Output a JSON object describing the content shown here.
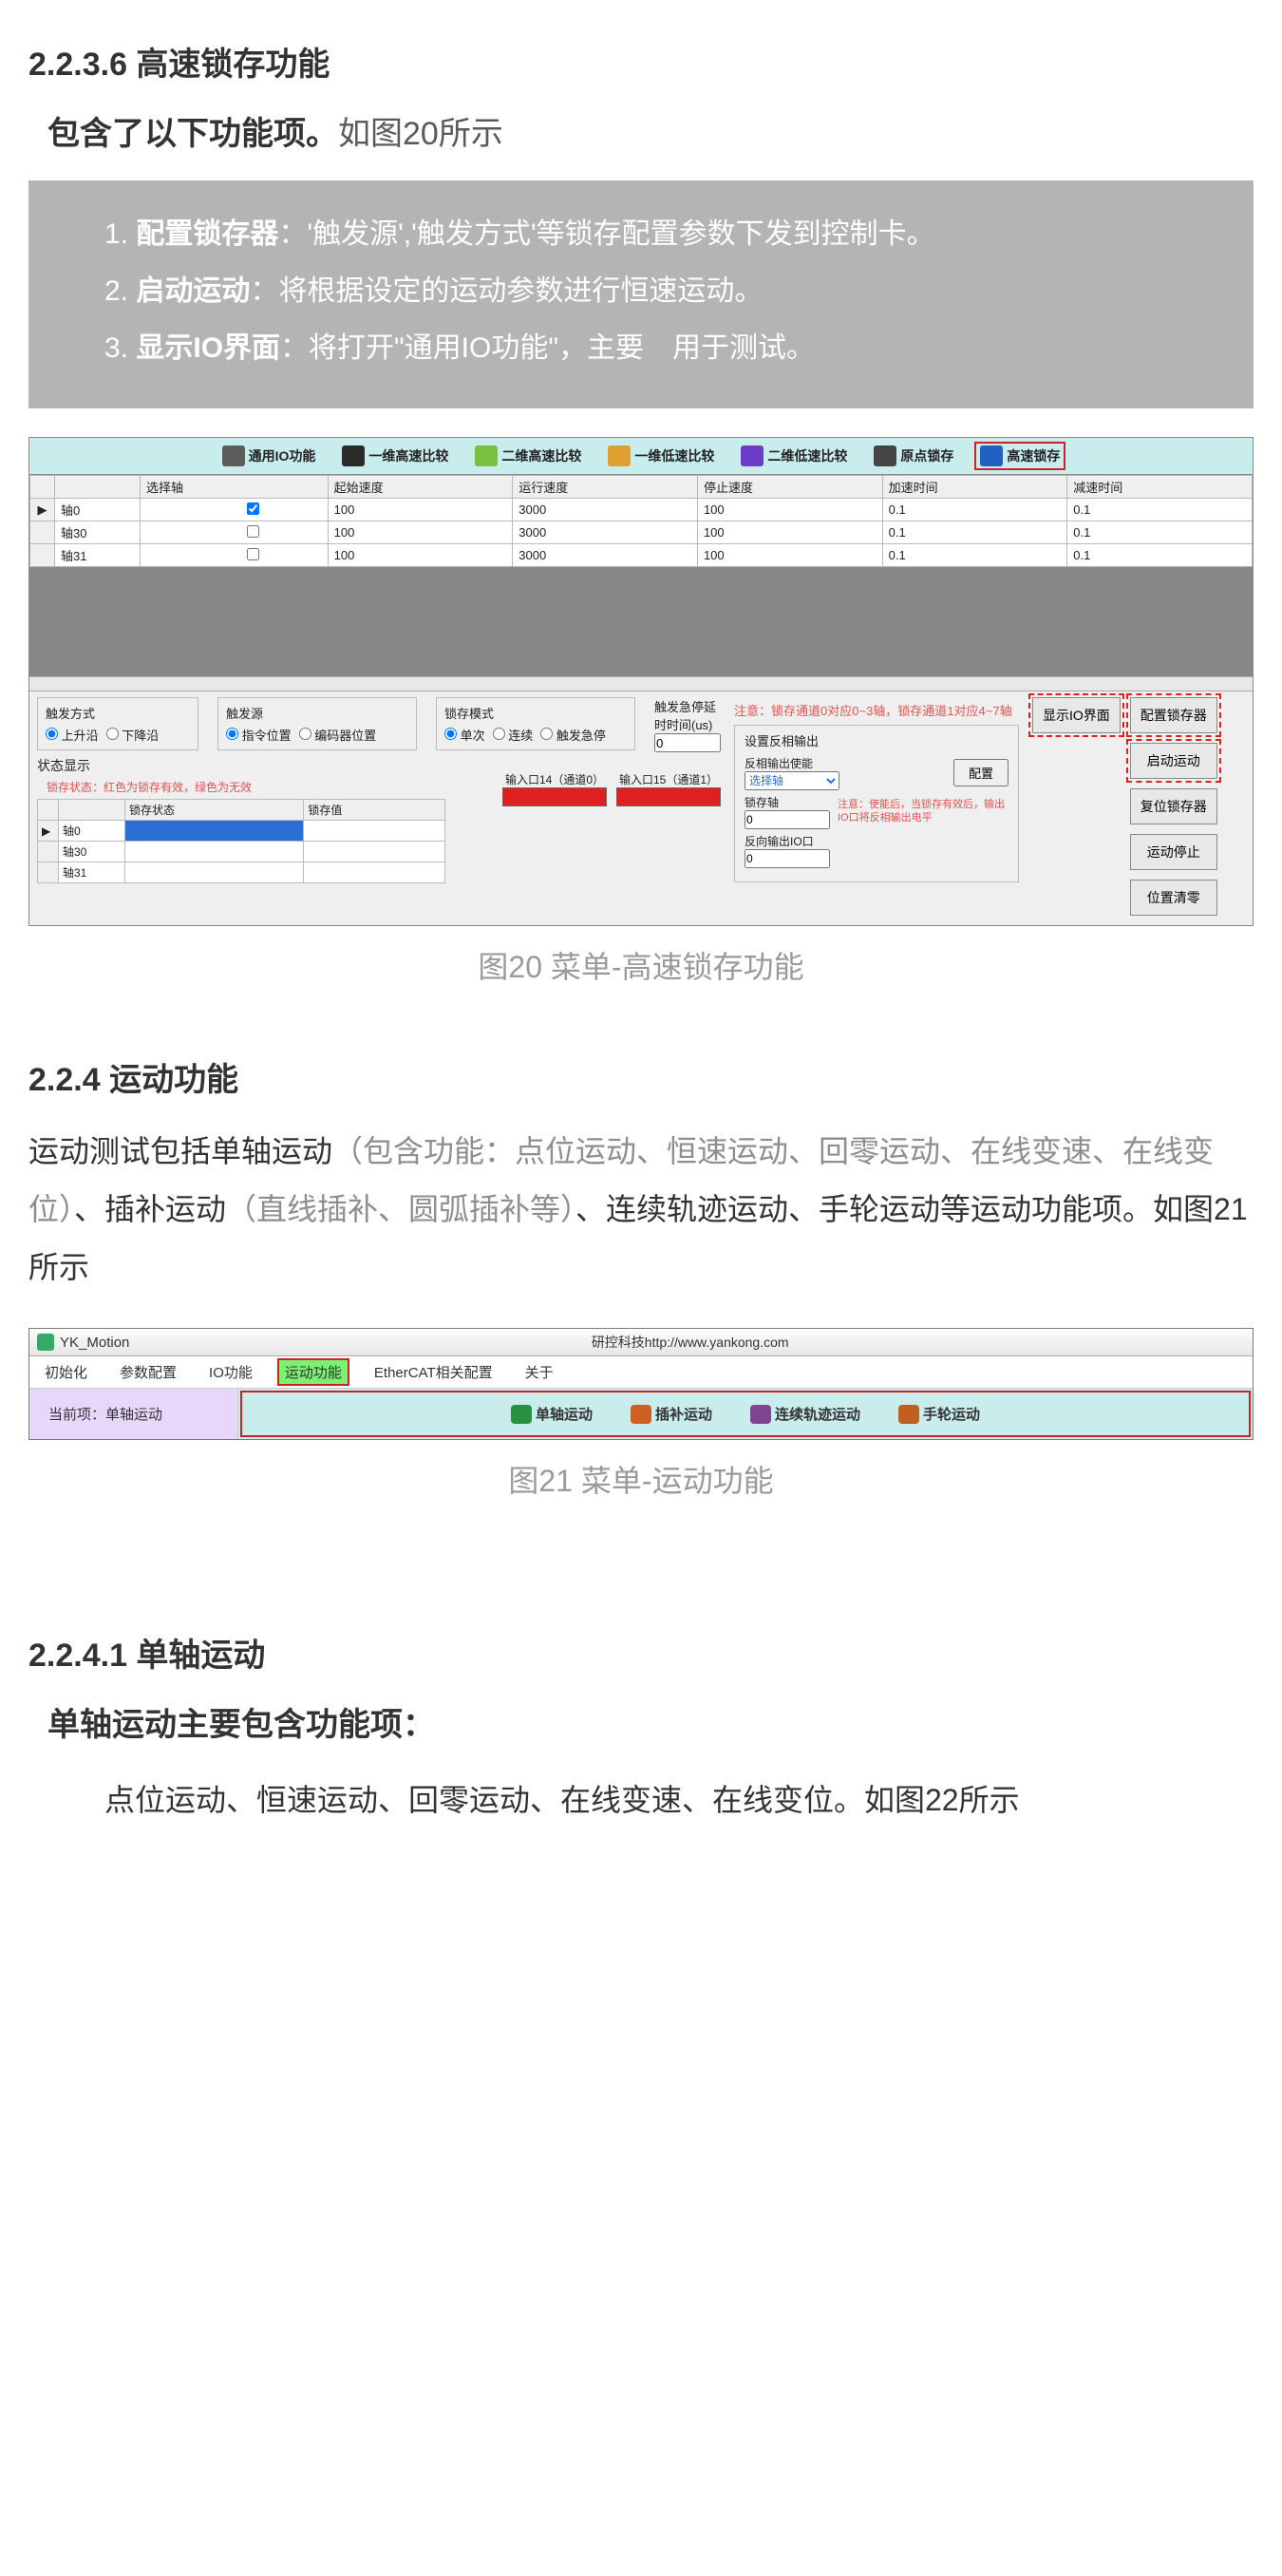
{
  "doc": {
    "sec_2236": "2.2.3.6 高速锁存功能",
    "sub_intro_bold": "包含了以下功能项。",
    "sub_intro_reg": "如图20所示",
    "box_items": [
      {
        "n": "1.",
        "b": "配置锁存器",
        "t": "：'触发源','触发方式'等锁存配置参数下发到控制卡。"
      },
      {
        "n": "2.",
        "b": "启动运动",
        "t": "：将根据设定的运动参数进行恒速运动。"
      },
      {
        "n": "3.",
        "b": "显示IO界面",
        "t": "：将打开\"通用IO功能\"，主要　用于测试。"
      }
    ],
    "fig20_caption": "图20 菜单-高速锁存功能",
    "sec_224": "2.2.4 运动功能",
    "para_224_pre": "运动测试包括单轴运动",
    "para_224_gry1": "（包含功能：点位运动、恒速运动、回零运动、在线变速、在线变位）",
    "para_224_mid1": "、插补运动",
    "para_224_gry2": "（直线插补、圆弧插补等）",
    "para_224_end": "、连续轨迹运动、手轮运动等运动功能项。如图21所示",
    "fig21_caption": "图21 菜单-运动功能",
    "sec_2241": "2.2.4.1 单轴运动",
    "sub_2241": "单轴运动主要包含功能项：",
    "list_2241": "点位运动、恒速运动、回零运动、在线变速、在线变位。如图22所示"
  },
  "fig20": {
    "tabs": [
      {
        "label": "通用IO功能",
        "color": "#5c5c5c"
      },
      {
        "label": "一维高速比较",
        "color": "#2a2a2a"
      },
      {
        "label": "二维高速比较",
        "color": "#78c040"
      },
      {
        "label": "一维低速比较",
        "color": "#e0a030"
      },
      {
        "label": "二维低速比较",
        "color": "#6a3cc8"
      },
      {
        "label": "原点锁存",
        "color": "#444"
      },
      {
        "label": "高速锁存",
        "color": "#2060c0",
        "active": true
      }
    ],
    "cols": [
      "",
      "",
      "选择轴",
      "起始速度",
      "运行速度",
      "停止速度",
      "加速时间",
      "减速时间"
    ],
    "rows": [
      {
        "hdr": "▶",
        "ax": "轴0",
        "sel": true,
        "v": [
          "100",
          "3000",
          "100",
          "0.1",
          "0.1"
        ]
      },
      {
        "hdr": "",
        "ax": "轴30",
        "sel": false,
        "v": [
          "100",
          "3000",
          "100",
          "0.1",
          "0.1"
        ]
      },
      {
        "hdr": "",
        "ax": "轴31",
        "sel": false,
        "v": [
          "100",
          "3000",
          "100",
          "0.1",
          "0.1"
        ]
      }
    ],
    "trig_mode_label": "触发方式",
    "trig_mode_opts": [
      "上升沿",
      "下降沿"
    ],
    "trig_src_label": "触发源",
    "trig_src_opts": [
      "指令位置",
      "编码器位置"
    ],
    "latch_mode_label": "锁存模式",
    "latch_mode_opts": [
      "单次",
      "连续",
      "触发急停"
    ],
    "delay_label": "触发急停延时时间(us)",
    "delay_value": "0",
    "right_note": "注意：锁存通道0对应0~3轴，锁存通道1对应4~7轴",
    "status_label": "状态显示",
    "status_note": "锁存状态：红色为锁存有效，绿色为无效",
    "port0": "输入口14（通道0）",
    "port1": "输入口15（通道1）",
    "status_cols": [
      "",
      "",
      "锁存状态",
      "锁存值"
    ],
    "status_rows": [
      "轴0",
      "轴30",
      "轴31"
    ],
    "inv_group": "设置反相输出",
    "inv_enable": "反相输出使能",
    "inv_enable_val": "选择轴",
    "inv_btn": "配置",
    "inv_latch_axis": "锁存轴",
    "inv_latch_axis_val": "0",
    "inv_out_io": "反向输出IO口",
    "inv_out_io_val": "0",
    "inv_warn": "注意：使能后，当锁存有效后，输出IO口将反相输出电平",
    "btns_col1": [
      "显示IO界面"
    ],
    "btns_col2": [
      "配置锁存器",
      "启动运动",
      "复位锁存器",
      "运动停止",
      "位置清零"
    ]
  },
  "fig21": {
    "title": "YK_Motion",
    "url": "研控科技http://www.yankong.com",
    "menu": [
      "初始化",
      "参数配置",
      "IO功能",
      "运动功能",
      "EtherCAT相关配置",
      "关于"
    ],
    "menu_hl_index": 3,
    "current_label": "当前项：单轴运动",
    "tabs": [
      {
        "label": "单轴运动",
        "color": "#2a9040"
      },
      {
        "label": "插补运动",
        "color": "#d06020"
      },
      {
        "label": "连续轨迹运动",
        "color": "#804590"
      },
      {
        "label": "手轮运动",
        "color": "#c06020"
      }
    ]
  }
}
